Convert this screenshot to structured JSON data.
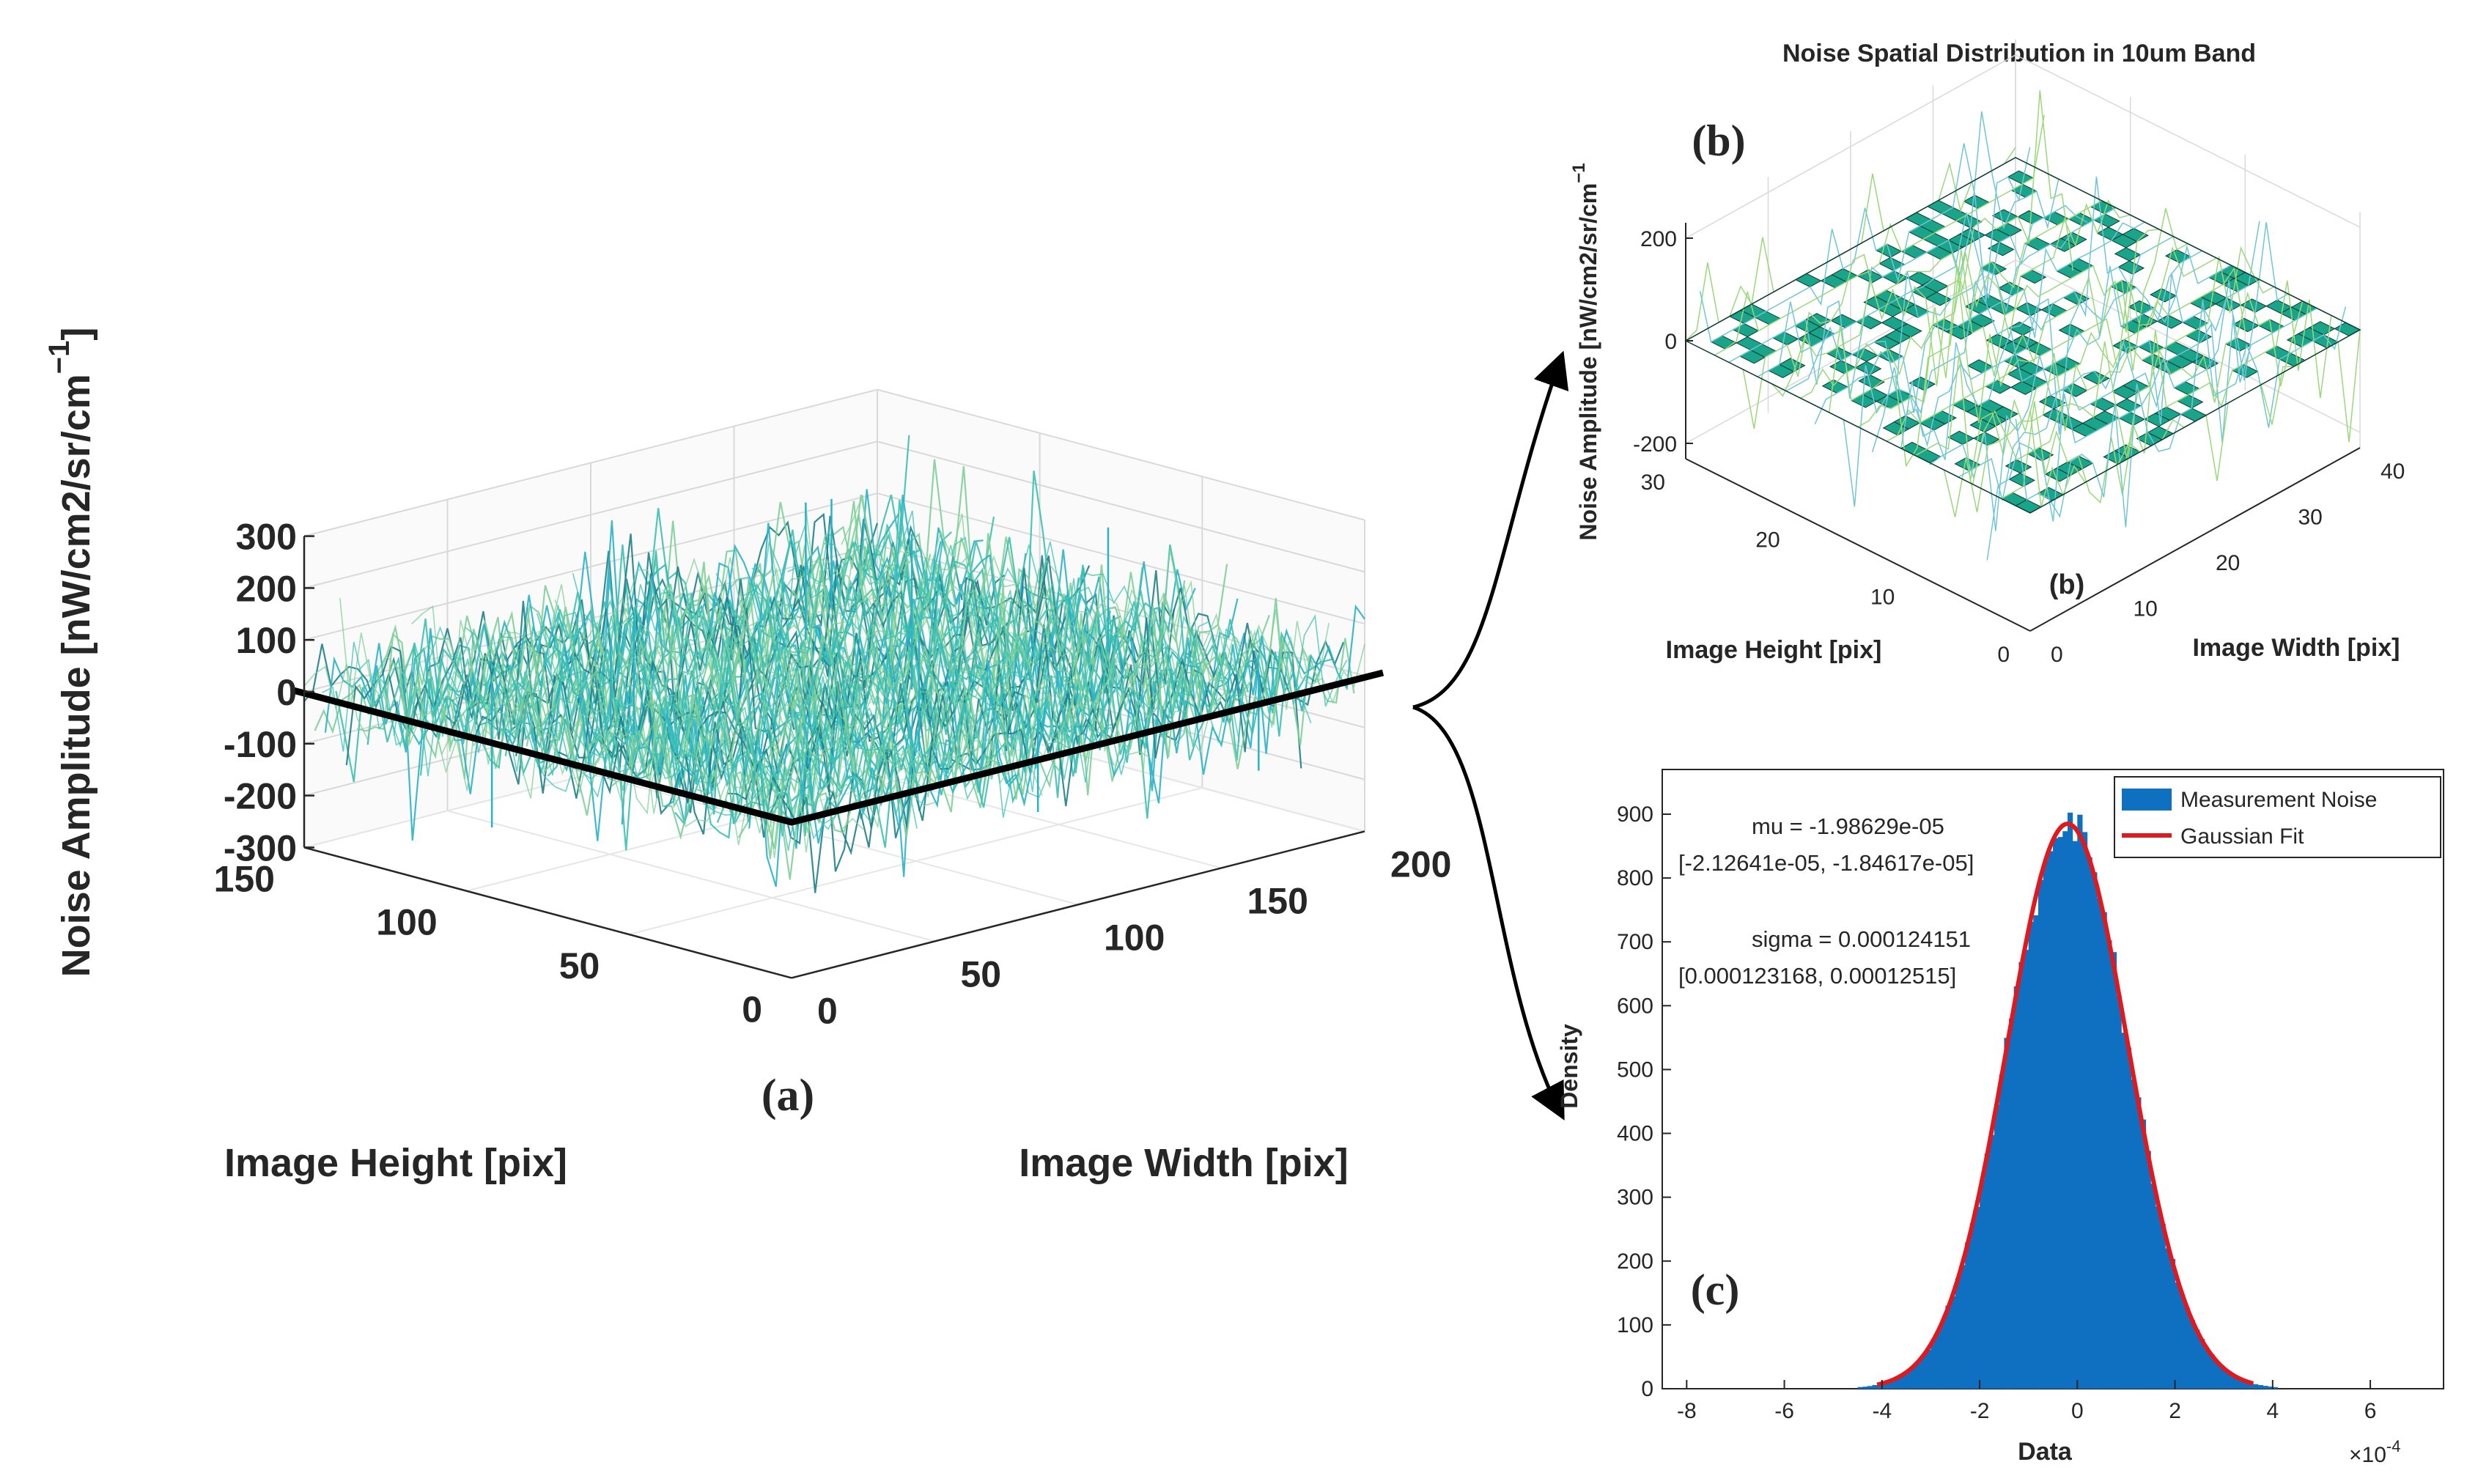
{
  "colors": {
    "surface_main": "#2ab3c8",
    "surface_alt": "#7fcf9a",
    "surface_dark": "#1e7f8a",
    "hist_fill": "#0f6fc0",
    "fit_line": "#e0191e",
    "axis": "#262626",
    "grid": "#d9d9d9",
    "arrow": "#000000"
  },
  "chart_data": [
    {
      "id": "a",
      "type": "surface3d",
      "panel_label": "(a)",
      "title": "",
      "xlabel": "Image Width [pix]",
      "ylabel": "Image Height [pix]",
      "zlabel": "Noise Amplitude [nW/cm2/sr/cm",
      "zlabel_sup": "−1",
      "zlabel_close": "]",
      "x_range": [
        0,
        200
      ],
      "y_range": [
        0,
        150
      ],
      "z_range": [
        -300,
        300
      ],
      "x_ticks": [
        "0",
        "50",
        "100",
        "150",
        "200"
      ],
      "y_ticks": [
        "0",
        "50",
        "100",
        "150"
      ],
      "z_ticks": [
        "300",
        "200",
        "100",
        "0",
        "-100",
        "-200",
        "-300"
      ],
      "z_tick_values": [
        300,
        200,
        100,
        0,
        -100,
        -200,
        -300
      ],
      "noise_std": 60,
      "spike_max": 300,
      "spike_min": -280
    },
    {
      "id": "b",
      "type": "surface3d",
      "panel_label": "(b)",
      "corner_label": "(b)",
      "title": "Noise Spatial Distribution in 10um Band",
      "xlabel": "Image Width [pix]",
      "ylabel": "Image Height [pix]",
      "zlabel": "Noise Amplitude [nW/cm2/sr/cm",
      "zlabel_sup": "−1",
      "x_range": [
        0,
        40
      ],
      "y_range": [
        0,
        30
      ],
      "z_range": [
        -200,
        200
      ],
      "x_ticks": [
        "0",
        "10",
        "20",
        "30",
        "40"
      ],
      "y_ticks": [
        "0",
        "10",
        "20",
        "30"
      ],
      "z_ticks": [
        "200",
        "0",
        "-200"
      ],
      "z_tick_values": [
        200,
        0,
        -200
      ]
    },
    {
      "id": "c",
      "type": "histogram",
      "panel_label": "(c)",
      "title": "",
      "xlabel": "Data",
      "ylabel": "Density",
      "x_multiplier": "×10",
      "x_multiplier_exp": "-4",
      "xlim": [
        -8.5,
        7.5
      ],
      "ylim": [
        0,
        970
      ],
      "x_ticks": [
        "-8",
        "-6",
        "-4",
        "-2",
        "0",
        "2",
        "4",
        "6"
      ],
      "x_tick_values": [
        -8,
        -6,
        -4,
        -2,
        0,
        2,
        4,
        6
      ],
      "y_ticks": [
        "0",
        "100",
        "200",
        "300",
        "400",
        "500",
        "600",
        "700",
        "800",
        "900"
      ],
      "y_tick_values": [
        0,
        100,
        200,
        300,
        400,
        500,
        600,
        700,
        800,
        900
      ],
      "mu": -0.198629,
      "sigma": 1.24151,
      "peak_density": 885,
      "legend": [
        "Measurement Noise",
        "Gaussian Fit"
      ],
      "annotations": {
        "mu_line": "mu = -1.98629e-05",
        "mu_ci": "[-2.12641e-05, -1.84617e-05]",
        "sigma_line": "sigma =  0.000124151",
        "sigma_ci": "[0.000123168, 0.00012515]"
      }
    }
  ]
}
